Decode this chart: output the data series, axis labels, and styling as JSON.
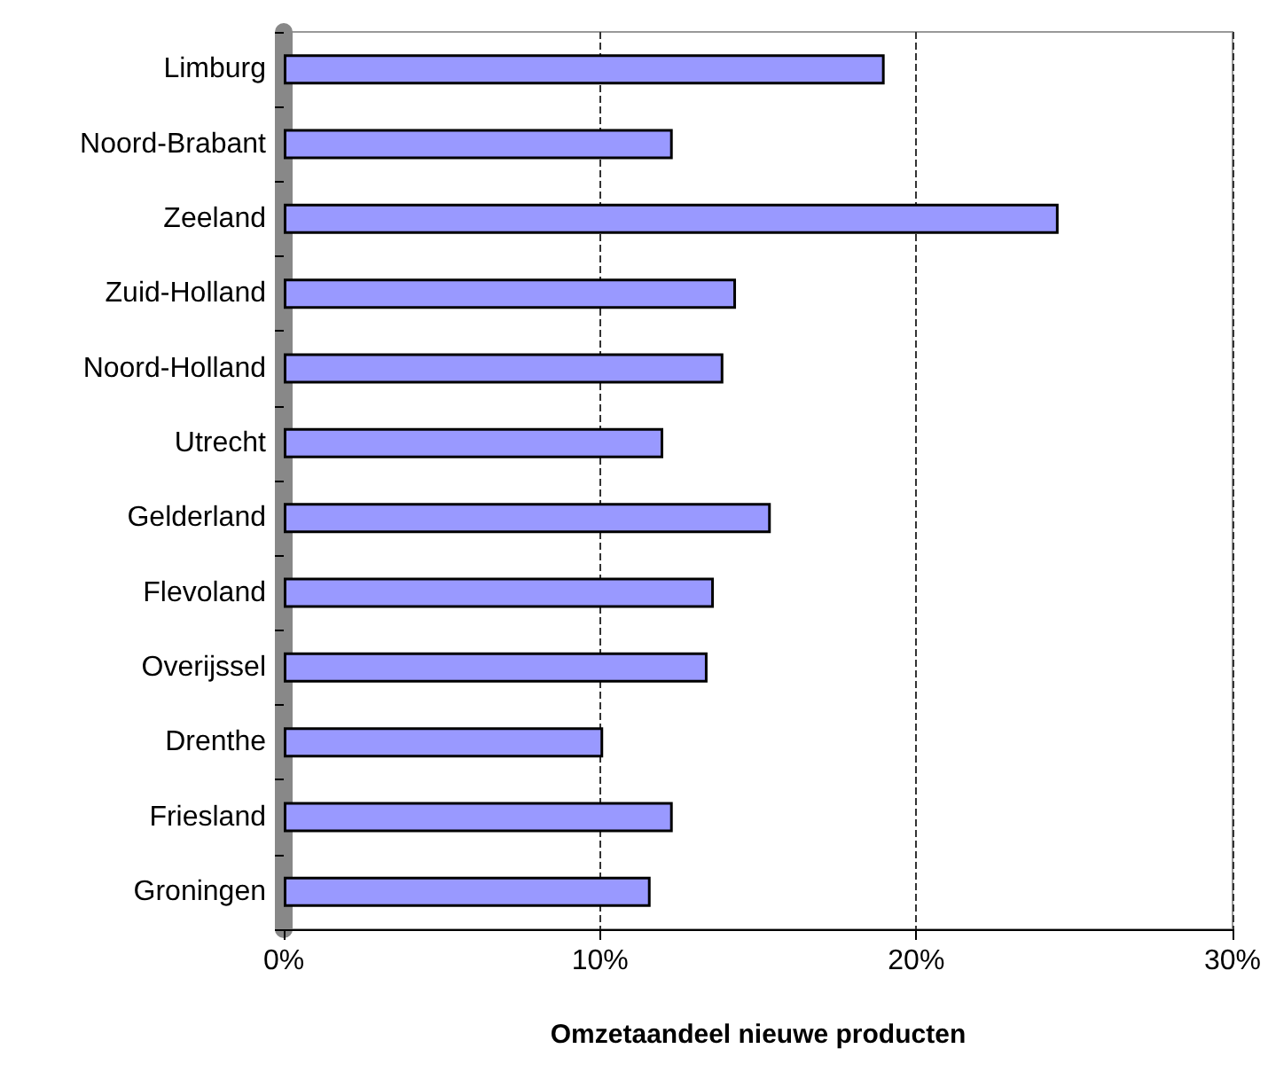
{
  "chart_data": {
    "type": "bar",
    "orientation": "horizontal",
    "xlabel": "Omzetaandeel nieuwe producten",
    "categories": [
      "Limburg",
      "Noord-Brabant",
      "Zeeland",
      "Zuid-Holland",
      "Noord-Holland",
      "Utrecht",
      "Gelderland",
      "Flevoland",
      "Overijssel",
      "Drenthe",
      "Friesland",
      "Groningen"
    ],
    "values": [
      19.0,
      12.3,
      24.5,
      14.3,
      13.9,
      12.0,
      15.4,
      13.6,
      13.4,
      10.1,
      12.3,
      11.6
    ],
    "color": "#9999ff",
    "xlim": [
      0,
      30
    ],
    "xticks": [
      {
        "value": 0,
        "label": "0%"
      },
      {
        "value": 10,
        "label": "10%"
      },
      {
        "value": 20,
        "label": "20%"
      },
      {
        "value": 30,
        "label": "30%"
      }
    ],
    "grid": "x"
  }
}
